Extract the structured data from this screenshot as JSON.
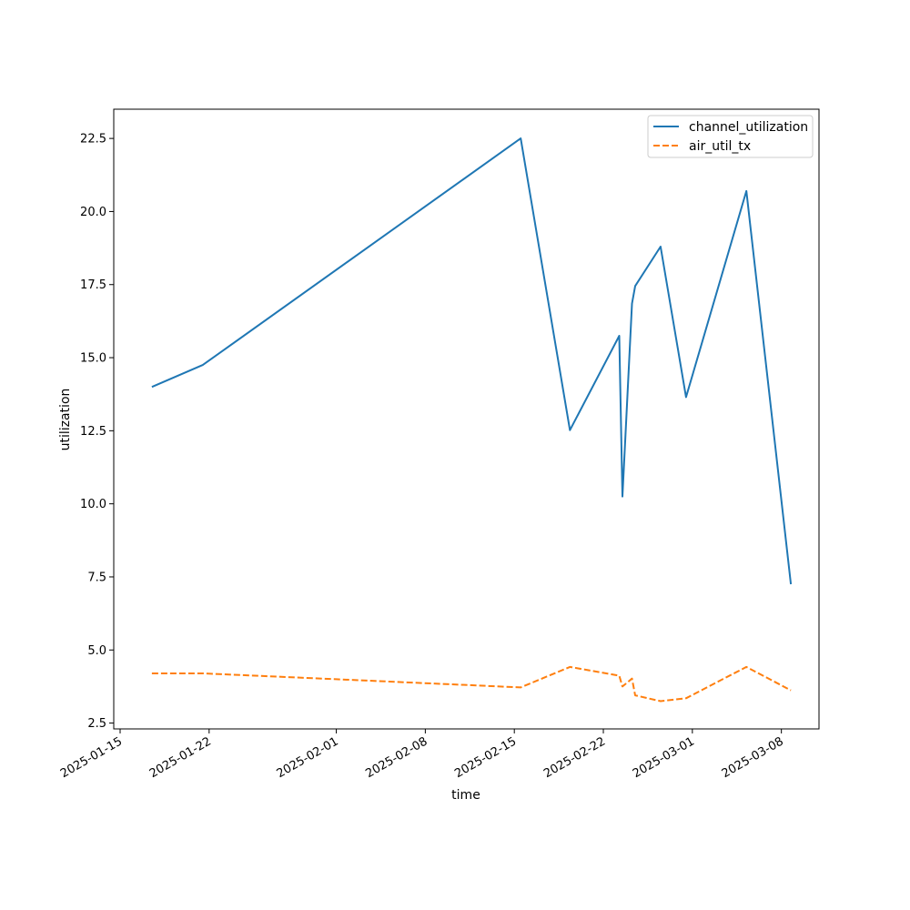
{
  "chart_data": {
    "type": "line",
    "xlabel": "time",
    "ylabel": "utilization",
    "x_range": [
      "2025-01-14T12:00",
      "2025-03-10T23:00"
    ],
    "ylim": [
      2.3,
      23.5
    ],
    "grid": false,
    "legend_position": "top-right",
    "x_ticks": [
      "2025-01-15",
      "2025-01-22",
      "2025-02-01",
      "2025-02-08",
      "2025-02-15",
      "2025-02-22",
      "2025-03-01",
      "2025-03-08"
    ],
    "y_ticks": [
      2.5,
      5.0,
      7.5,
      10.0,
      12.5,
      15.0,
      17.5,
      20.0,
      22.5
    ],
    "series": [
      {
        "name": "channel_utilization",
        "color": "#1f77b4",
        "dash": "solid",
        "points": [
          [
            "2025-01-17T12:00",
            14.0
          ],
          [
            "2025-01-21T12:00",
            14.75
          ],
          [
            "2025-02-15T12:00",
            22.5
          ],
          [
            "2025-02-19T09:00",
            12.52
          ],
          [
            "2025-02-23T06:00",
            15.75
          ],
          [
            "2025-02-23T12:00",
            10.25
          ],
          [
            "2025-02-24T06:00",
            16.85
          ],
          [
            "2025-02-24T12:00",
            17.45
          ],
          [
            "2025-02-26T12:00",
            18.8
          ],
          [
            "2025-02-28T12:00",
            13.65
          ],
          [
            "2025-03-05T06:00",
            20.7
          ],
          [
            "2025-03-08T18:00",
            7.25
          ]
        ]
      },
      {
        "name": "air_util_tx",
        "color": "#ff7f0e",
        "dash": "dashed",
        "points": [
          [
            "2025-01-17T12:00",
            4.2
          ],
          [
            "2025-01-21T12:00",
            4.2
          ],
          [
            "2025-02-01T00:00",
            4.0
          ],
          [
            "2025-02-15T12:00",
            3.72
          ],
          [
            "2025-02-19T09:00",
            4.42
          ],
          [
            "2025-02-23T06:00",
            4.12
          ],
          [
            "2025-02-23T12:00",
            3.75
          ],
          [
            "2025-02-24T06:00",
            4.02
          ],
          [
            "2025-02-24T12:00",
            3.45
          ],
          [
            "2025-02-26T12:00",
            3.25
          ],
          [
            "2025-02-28T12:00",
            3.35
          ],
          [
            "2025-03-05T06:00",
            4.42
          ],
          [
            "2025-03-08T18:00",
            3.62
          ]
        ]
      }
    ]
  }
}
